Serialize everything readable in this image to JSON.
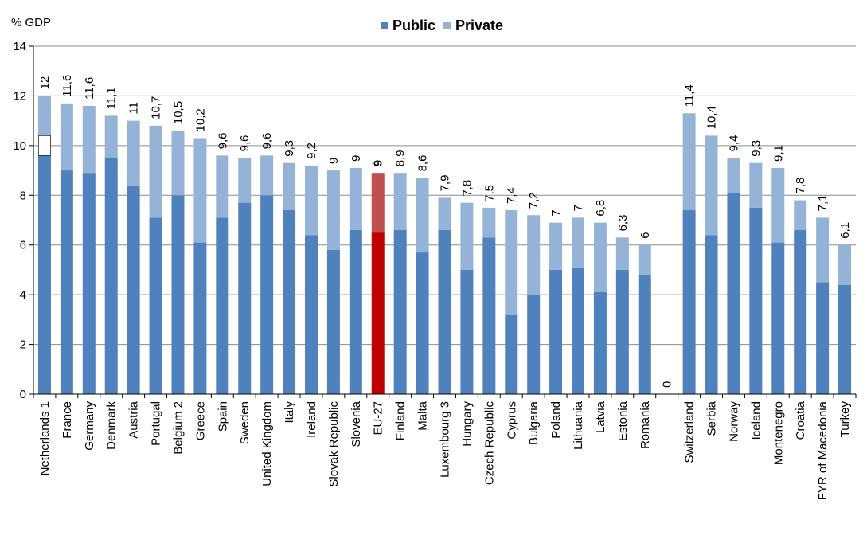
{
  "chart_data": {
    "type": "bar",
    "stacked": true,
    "ylabel": "% GDP",
    "ylim": [
      0,
      14
    ],
    "yticks": [
      0,
      2,
      4,
      6,
      8,
      10,
      12,
      14
    ],
    "grid": true,
    "legend_position": "top",
    "colors": {
      "public": "#4f81bd",
      "private": "#95b3d7",
      "highlight_public": "#c00000",
      "highlight_private": "#c0504d"
    },
    "categories": [
      "Netherlands 1",
      "France",
      "Germany",
      "Denmark",
      "Austria",
      "Portugal",
      "Belgium 2",
      "Greece",
      "Spain",
      "Sweden",
      "United Kingdom",
      "Italy",
      "Ireland",
      "Slovak Republic",
      "Slovenia",
      "EU-27",
      "Finland",
      "Malta",
      "Luxembourg 3",
      "Hungary",
      "Czech Republic",
      "Cyprus",
      "Bulgaria",
      "Poland",
      "Lithuania",
      "Latvia",
      "Estonia",
      "Romania",
      "",
      "Switzerland",
      "Serbia",
      "Norway",
      "Iceland",
      "Montenegro",
      "Croatia",
      "FYR of Macedonia",
      "Turkey"
    ],
    "series": [
      {
        "name": "Public",
        "values": [
          9.6,
          9.0,
          8.9,
          9.5,
          8.4,
          7.1,
          8.0,
          6.1,
          7.1,
          7.7,
          8.0,
          7.4,
          6.4,
          5.8,
          6.6,
          6.5,
          6.6,
          5.7,
          6.6,
          5.0,
          6.3,
          3.2,
          4.0,
          5.0,
          5.1,
          4.1,
          5.0,
          4.8,
          0,
          7.4,
          6.4,
          8.1,
          7.5,
          6.1,
          6.6,
          4.5,
          4.4
        ]
      },
      {
        "name": "Private",
        "values": [
          2.4,
          2.7,
          2.7,
          1.7,
          2.6,
          3.7,
          2.6,
          4.2,
          2.5,
          1.8,
          1.6,
          1.9,
          2.8,
          3.2,
          2.5,
          2.4,
          2.3,
          3.0,
          1.3,
          2.7,
          1.2,
          4.2,
          3.2,
          1.9,
          2.0,
          2.8,
          1.3,
          1.2,
          0,
          3.9,
          4.0,
          1.4,
          1.8,
          3.0,
          1.2,
          2.6,
          1.6
        ]
      }
    ],
    "total_labels": [
      "12",
      "11,6",
      "11,6",
      "11,1",
      "11",
      "10,7",
      "10,5",
      "10,2",
      "9,6",
      "9,6",
      "9,6",
      "9,3",
      "9,2",
      "9",
      "9",
      "9",
      "8,9",
      "8,6",
      "7,9",
      "7,8",
      "7,5",
      "7,4",
      "7,2",
      "7",
      "7",
      "6,8",
      "6,3",
      "6",
      "0",
      "11,4",
      "10,4",
      "9,4",
      "9,3",
      "9,1",
      "7,8",
      "7,1",
      "6,1"
    ],
    "highlight_index": 15,
    "netherlands_white_segment": [
      9.6,
      10.4
    ]
  }
}
